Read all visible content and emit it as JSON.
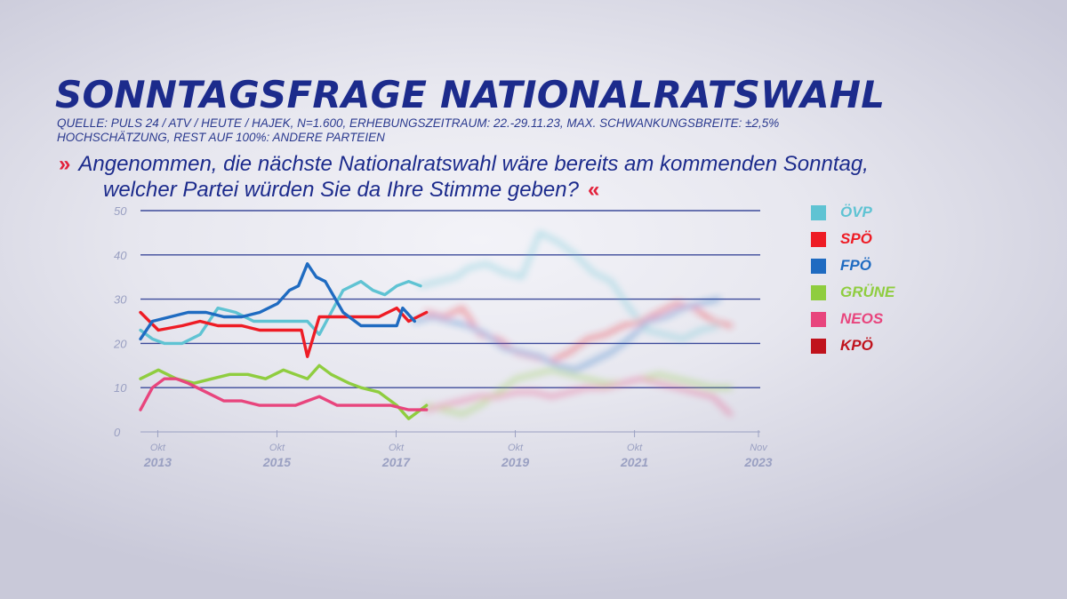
{
  "header": {
    "title": "SONNTAGSFRAGE NATIONALRATSWAHL",
    "source_line1": "QUELLE: PULS 24 / ATV / HEUTE / HAJEK, N=1.600, ERHEBUNGSZEITRAUM: 22.-29.11.23, MAX. SCHWANKUNGSBREITE: ±2,5%",
    "source_line2": "HOCHSCHÄTZUNG, REST AUF 100%: ANDERE PARTEIEN",
    "question_line1": "Angenommen, die nächste Nationalratswahl wäre bereits am kommenden Sonntag,",
    "question_line2": "welcher Partei würden Sie da Ihre Stimme geben?",
    "quote_open": "»",
    "quote_close": "«"
  },
  "legend": [
    {
      "label": "ÖVP",
      "color": "#5fc3d3"
    },
    {
      "label": "SPÖ",
      "color": "#ee1c25"
    },
    {
      "label": "FPÖ",
      "color": "#1f6bc1"
    },
    {
      "label": "GRÜNE",
      "color": "#8fcd3f"
    },
    {
      "label": "NEOS",
      "color": "#e8457d"
    },
    {
      "label": "KPÖ",
      "color": "#c0121c"
    }
  ],
  "chart_data": {
    "type": "line",
    "ylim": [
      0,
      50
    ],
    "yticks": [
      "0",
      "10",
      "20",
      "30",
      "40",
      "50"
    ],
    "xlim": [
      2013.5,
      2023.9
    ],
    "xticks": [
      {
        "month": "Okt",
        "year": "2013",
        "x": 2013.79
      },
      {
        "month": "Okt",
        "year": "2015",
        "x": 2015.79
      },
      {
        "month": "Okt",
        "year": "2017",
        "x": 2017.79
      },
      {
        "month": "Okt",
        "year": "2019",
        "x": 2019.79
      },
      {
        "month": "Okt",
        "year": "2021",
        "x": 2021.79
      },
      {
        "month": "Nov",
        "year": "2023",
        "x": 2023.87
      }
    ],
    "grid": true,
    "legend_position": "right",
    "faded_after": 2018.3,
    "series": [
      {
        "name": "ÖVP",
        "color": "#5fc3d3",
        "x": [
          2013.5,
          2013.7,
          2013.9,
          2014.2,
          2014.5,
          2014.8,
          2015.1,
          2015.4,
          2015.7,
          2016.0,
          2016.3,
          2016.5,
          2016.7,
          2016.9,
          2017.2,
          2017.4,
          2017.6,
          2017.8,
          2018.0,
          2018.2,
          2018.5,
          2018.8,
          2019.0,
          2019.3,
          2019.6,
          2019.9,
          2020.2,
          2020.5,
          2020.8,
          2021.1,
          2021.4,
          2021.7,
          2022.0,
          2022.3,
          2022.6,
          2022.9,
          2023.2
        ],
        "y": [
          23,
          21,
          20,
          20,
          22,
          28,
          27,
          25,
          25,
          25,
          25,
          22,
          27,
          32,
          34,
          32,
          31,
          33,
          34,
          33,
          34,
          35,
          37,
          38,
          36,
          35,
          45,
          43,
          40,
          36,
          34,
          28,
          23,
          22,
          21,
          23,
          24
        ]
      },
      {
        "name": "SPÖ",
        "color": "#ee1c25",
        "x": [
          2013.5,
          2013.8,
          2014.2,
          2014.5,
          2014.8,
          2015.2,
          2015.5,
          2015.7,
          2016.0,
          2016.2,
          2016.3,
          2016.5,
          2016.8,
          2017.2,
          2017.5,
          2017.8,
          2018.0,
          2018.3,
          2018.6,
          2018.9,
          2019.2,
          2019.5,
          2019.8,
          2020.1,
          2020.4,
          2020.7,
          2021.0,
          2021.3,
          2021.6,
          2021.9,
          2022.2,
          2022.5,
          2022.8,
          2023.1,
          2023.4
        ],
        "y": [
          27,
          23,
          24,
          25,
          24,
          24,
          23,
          23,
          23,
          23,
          17,
          26,
          26,
          26,
          26,
          28,
          25,
          27,
          26,
          28,
          22,
          21,
          18,
          17,
          16,
          18,
          21,
          22,
          24,
          25,
          27,
          29,
          28,
          25,
          24
        ]
      },
      {
        "name": "FPÖ",
        "color": "#1f6bc1",
        "x": [
          2013.5,
          2013.7,
          2014.0,
          2014.3,
          2014.6,
          2014.9,
          2015.2,
          2015.5,
          2015.8,
          2016.0,
          2016.15,
          2016.3,
          2016.45,
          2016.6,
          2016.9,
          2017.2,
          2017.5,
          2017.8,
          2017.9,
          2018.1,
          2018.4,
          2018.7,
          2019.0,
          2019.3,
          2019.6,
          2019.9,
          2020.2,
          2020.5,
          2020.8,
          2021.1,
          2021.4,
          2021.7,
          2022.0,
          2022.3,
          2022.6,
          2022.9,
          2023.2
        ],
        "y": [
          21,
          25,
          26,
          27,
          27,
          26,
          26,
          27,
          29,
          32,
          33,
          38,
          35,
          34,
          27,
          24,
          24,
          24,
          28,
          25,
          26,
          25,
          24,
          22,
          19,
          18,
          17,
          15,
          14,
          16,
          18,
          21,
          25,
          26,
          28,
          29,
          30
        ]
      },
      {
        "name": "GRÜNE",
        "color": "#8fcd3f",
        "x": [
          2013.5,
          2013.8,
          2014.1,
          2014.4,
          2014.7,
          2015.0,
          2015.3,
          2015.6,
          2015.9,
          2016.1,
          2016.3,
          2016.5,
          2016.7,
          2017.0,
          2017.2,
          2017.5,
          2017.8,
          2018.0,
          2018.3,
          2018.6,
          2018.9,
          2019.2,
          2019.5,
          2019.8,
          2020.1,
          2020.4,
          2020.7,
          2021.0,
          2021.3,
          2021.6,
          2021.9,
          2022.2,
          2022.5,
          2022.8,
          2023.1,
          2023.4
        ],
        "y": [
          12,
          14,
          12,
          11,
          12,
          13,
          13,
          12,
          14,
          13,
          12,
          15,
          13,
          11,
          10,
          9,
          6,
          3,
          6,
          5,
          4,
          6,
          9,
          12,
          13,
          14,
          13,
          12,
          11,
          11,
          12,
          13,
          12,
          11,
          10,
          10
        ]
      },
      {
        "name": "NEOS",
        "color": "#e8457d",
        "x": [
          2013.5,
          2013.7,
          2013.9,
          2014.1,
          2014.3,
          2014.6,
          2014.9,
          2015.2,
          2015.5,
          2015.8,
          2016.1,
          2016.3,
          2016.5,
          2016.8,
          2017.1,
          2017.4,
          2017.7,
          2018.0,
          2018.3,
          2018.6,
          2018.9,
          2019.2,
          2019.5,
          2019.8,
          2020.1,
          2020.4,
          2020.7,
          2021.0,
          2021.3,
          2021.6,
          2021.9,
          2022.2,
          2022.5,
          2022.8,
          2023.1,
          2023.4
        ],
        "y": [
          5,
          10,
          12,
          12,
          11,
          9,
          7,
          7,
          6,
          6,
          6,
          7,
          8,
          6,
          6,
          6,
          6,
          5,
          5,
          6,
          7,
          8,
          8,
          9,
          9,
          8,
          9,
          10,
          10,
          11,
          12,
          11,
          10,
          9,
          8,
          4
        ]
      }
    ]
  }
}
